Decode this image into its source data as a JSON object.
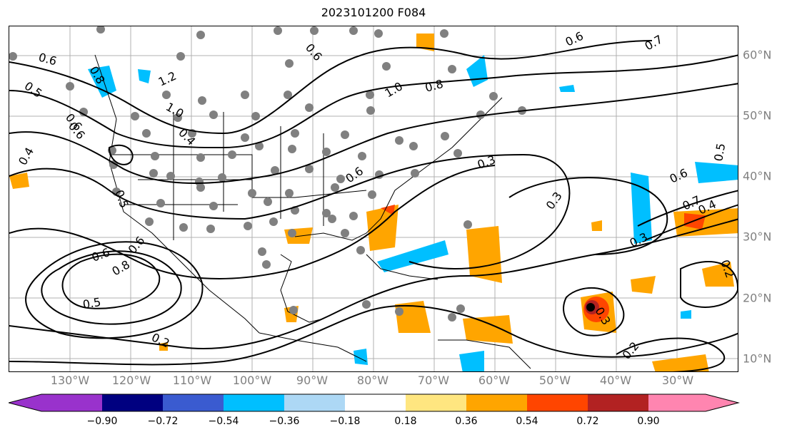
{
  "title": "2023101200 F084",
  "map": {
    "lon_labels": [
      "130°W",
      "120°W",
      "110°W",
      "100°W",
      "90°W",
      "80°W",
      "70°W",
      "60°W",
      "50°W",
      "40°W",
      "30°W"
    ],
    "lat_labels": [
      "60°N",
      "50°N",
      "40°N",
      "30°N",
      "20°N",
      "10°N"
    ],
    "contour_labels": [
      "0.6",
      "0.8",
      "0.5",
      "0.4",
      "1.2",
      "1.0",
      "0.6",
      "0.6",
      "0.4",
      "0.6",
      "1.0",
      "0.8",
      "0.6",
      "0.7",
      "0.3",
      "0.3",
      "0.5",
      "0.6",
      "0.7",
      "0.4",
      "0.3",
      "0.2",
      "0.6",
      "0.8",
      "0.6",
      "0.5",
      "0.2",
      "0.3",
      "0.2",
      "0.5",
      "0.6"
    ],
    "colors": {
      "orange": "#ffa500",
      "red": "#ff4500",
      "darkred": "#b22222",
      "cyan": "#00bfff",
      "blue": "#4169e1",
      "marker": "#808080",
      "contour": "#000000"
    }
  },
  "colorbar": {
    "ticks": [
      "−0.90",
      "−0.72",
      "−0.54",
      "−0.36",
      "−0.18",
      "0.18",
      "0.36",
      "0.54",
      "0.72",
      "0.90"
    ],
    "colors": [
      "#9932cc",
      "#000080",
      "#3a5bd0",
      "#00bfff",
      "#add8f5",
      "#ffffff",
      "#ffe680",
      "#ffa500",
      "#ff4500",
      "#b22222",
      "#ff85b0"
    ]
  }
}
